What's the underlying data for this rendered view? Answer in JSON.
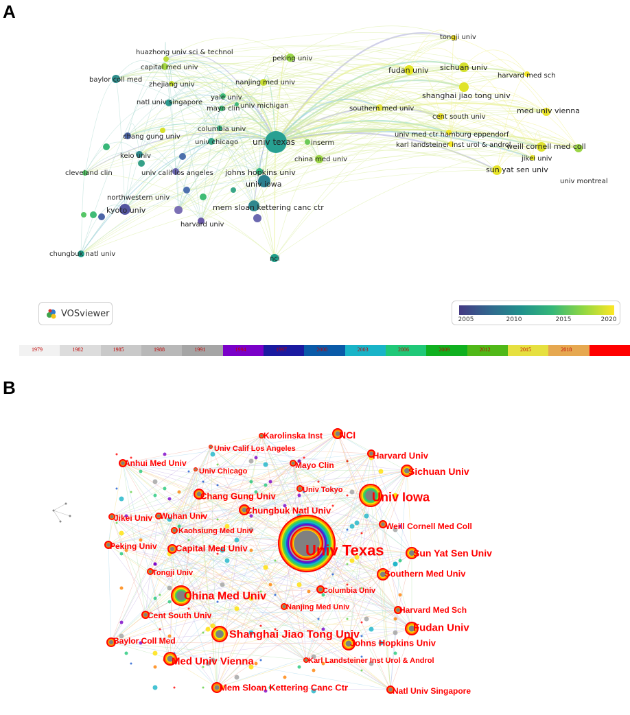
{
  "panel_a": {
    "letter": "A",
    "badge_text": "VOSviewer",
    "legend_ticks": [
      "2005",
      "2010",
      "2015",
      "2020"
    ],
    "nodes": [
      {
        "label": "univ texas",
        "size": "big"
      },
      {
        "label": "univ iowa",
        "size": "mid"
      },
      {
        "label": "johns hopkins univ",
        "size": "mid"
      },
      {
        "label": "mem sloan kettering canc ctr",
        "size": "mid"
      },
      {
        "label": "nci",
        "size": "small"
      },
      {
        "label": "kyoto univ",
        "size": "mid"
      },
      {
        "label": "harvard univ",
        "size": "small"
      },
      {
        "label": "northwestern univ",
        "size": "small"
      },
      {
        "label": "univ calif los angeles",
        "size": "small"
      },
      {
        "label": "cleveland clin",
        "size": "small"
      },
      {
        "label": "keio univ",
        "size": "small"
      },
      {
        "label": "chang gung univ",
        "size": "small"
      },
      {
        "label": "univ chicago",
        "size": "small"
      },
      {
        "label": "columbia univ",
        "size": "small"
      },
      {
        "label": "natl univ singapore",
        "size": "small"
      },
      {
        "label": "mayo clin",
        "size": "small"
      },
      {
        "label": "yale univ",
        "size": "small"
      },
      {
        "label": "univ michigan",
        "size": "small"
      },
      {
        "label": "baylor coll med",
        "size": "small"
      },
      {
        "label": "zhejiang univ",
        "size": "small"
      },
      {
        "label": "capital med univ",
        "size": "small"
      },
      {
        "label": "huazhong univ sci & technol",
        "size": "small"
      },
      {
        "label": "peking univ",
        "size": "small"
      },
      {
        "label": "nanjing med univ",
        "size": "small"
      },
      {
        "label": "inserm",
        "size": "small"
      },
      {
        "label": "china med univ",
        "size": "small"
      },
      {
        "label": "chungbuk natl univ",
        "size": "small"
      },
      {
        "label": "tongji univ",
        "size": "small"
      },
      {
        "label": "fudan univ",
        "size": "mid"
      },
      {
        "label": "sichuan univ",
        "size": "mid"
      },
      {
        "label": "harvard med sch",
        "size": "small"
      },
      {
        "label": "shanghai jiao tong univ",
        "size": "mid"
      },
      {
        "label": "southern med univ",
        "size": "small"
      },
      {
        "label": "cent south univ",
        "size": "small"
      },
      {
        "label": "med univ vienna",
        "size": "mid"
      },
      {
        "label": "univ med ctr hamburg eppendorf",
        "size": "small"
      },
      {
        "label": "karl landsteiner inst urol & androl",
        "size": "small"
      },
      {
        "label": "weill cornell med coll",
        "size": "mid"
      },
      {
        "label": "jikei univ",
        "size": "small"
      },
      {
        "label": "sun yat sen univ",
        "size": "mid"
      },
      {
        "label": "univ montreal",
        "size": "small"
      }
    ]
  },
  "year_bar": [
    "1979",
    "1982",
    "1985",
    "1988",
    "1991",
    "1994",
    "1997",
    "2000",
    "2003",
    "2006",
    "2009",
    "2012",
    "2015",
    "2018",
    ""
  ],
  "year_colors": [
    "#f2f2f2",
    "#dcdcdc",
    "#c9c9c9",
    "#b8b8b8",
    "#a5a5a5",
    "#7a00c8",
    "#1a1aa0",
    "#0a5aa8",
    "#19b4c8",
    "#20c878",
    "#10b020",
    "#50b818",
    "#e6e040",
    "#e6a850",
    "#ff0000"
  ],
  "panel_b": {
    "letter": "B",
    "labels": [
      {
        "label": "Univ Texas",
        "size": 22
      },
      {
        "label": "Univ Iowa",
        "size": 18
      },
      {
        "label": "Shanghai Jiao Tong Univ",
        "size": 16
      },
      {
        "label": "China Med Univ",
        "size": 16
      },
      {
        "label": "Med Univ Vienna",
        "size": 15
      },
      {
        "label": "Fudan Univ",
        "size": 15
      },
      {
        "label": "Sun Yat Sen Univ",
        "size": 14
      },
      {
        "label": "Sichuan Univ",
        "size": 14
      },
      {
        "label": "Johns Hopkins Univ",
        "size": 13
      },
      {
        "label": "Mem Sloan Kettering Canc Ctr",
        "size": 13
      },
      {
        "label": "Chungbuk Natl Univ",
        "size": 13
      },
      {
        "label": "Southern Med Univ",
        "size": 13
      },
      {
        "label": "Chang Gung Univ",
        "size": 13
      },
      {
        "label": "Harvard Univ",
        "size": 13
      },
      {
        "label": "NCI",
        "size": 14
      },
      {
        "label": "Capital Med Univ",
        "size": 13
      },
      {
        "label": "Weill Cornell Med Coll",
        "size": 12
      },
      {
        "label": "Baylor Coll Med",
        "size": 12
      },
      {
        "label": "Cent South Univ",
        "size": 12
      },
      {
        "label": "Harvard Med Sch",
        "size": 12
      },
      {
        "label": "Natl Univ Singapore",
        "size": 12
      },
      {
        "label": "Karolinska Inst",
        "size": 12
      },
      {
        "label": "Univ Calif Los Angeles",
        "size": 11
      },
      {
        "label": "Anhui Med Univ",
        "size": 12
      },
      {
        "label": "Univ Chicago",
        "size": 11
      },
      {
        "label": "Mayo Clin",
        "size": 12
      },
      {
        "label": "Univ Tokyo",
        "size": 11
      },
      {
        "label": "Jikei Univ",
        "size": 12
      },
      {
        "label": "Wuhan Univ",
        "size": 12
      },
      {
        "label": "Kaohsiung Med Univ",
        "size": 11
      },
      {
        "label": "Peking Univ",
        "size": 12
      },
      {
        "label": "Tongji Univ",
        "size": 11
      },
      {
        "label": "Columbia Univ",
        "size": 11
      },
      {
        "label": "Nanjing Med Univ",
        "size": 11
      },
      {
        "label": "Karl Landsteiner Inst Urol & Androl",
        "size": 11
      }
    ]
  }
}
